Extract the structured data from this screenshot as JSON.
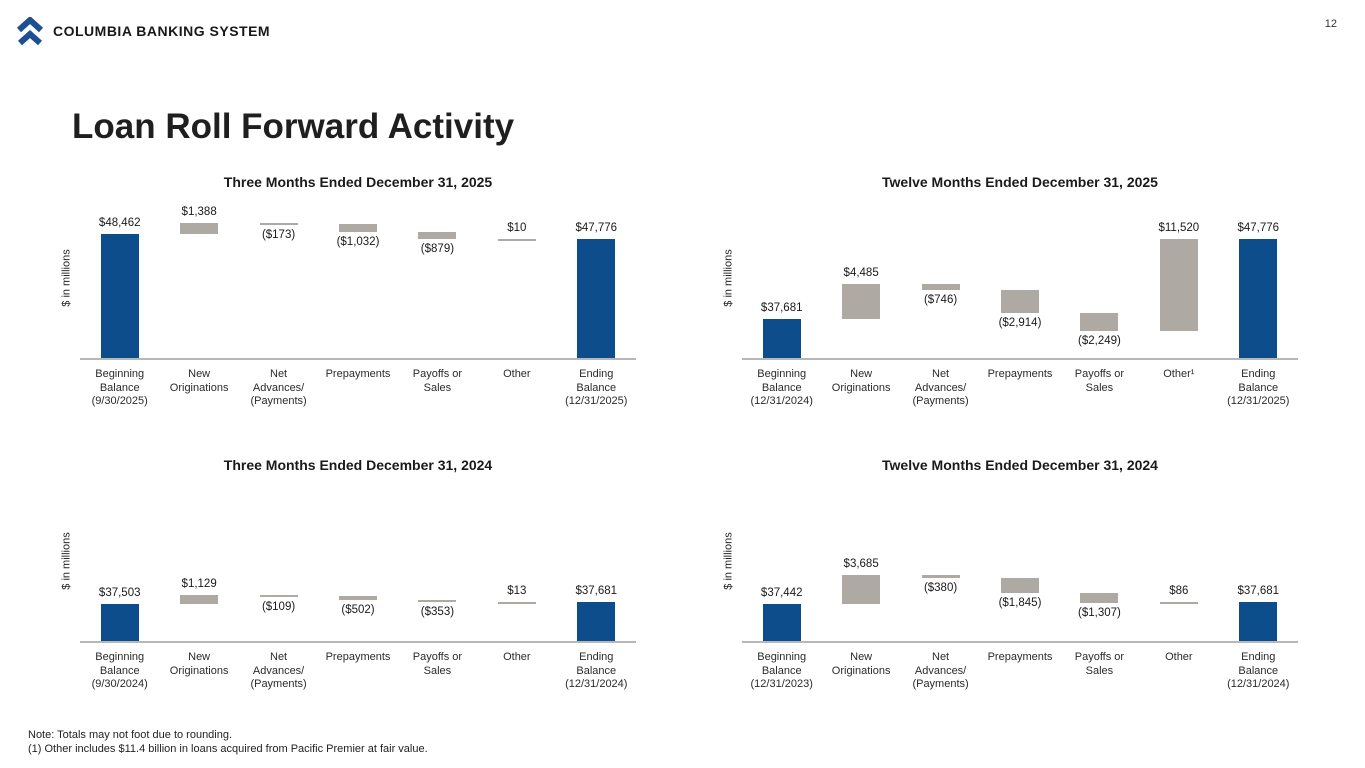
{
  "header": {
    "brand": "COLUMBIA BANKING SYSTEM",
    "page_number": "12"
  },
  "title": "Loan Roll Forward Activity",
  "footnotes": [
    "Note: Totals may not foot due to rounding.",
    "(1)  Other includes $11.4 billion in loans acquired from Pacific Premier at fair value."
  ],
  "colors": {
    "bar_blue": "#0d4d8c",
    "bar_gray": "#aea9a3",
    "axis_gray": "#b7b7b7",
    "logo_blue": "#1d4f91"
  },
  "chart_data": [
    {
      "type": "waterfall",
      "title": "Three Months Ended December 31, 2025",
      "ylabel": "$ in millions",
      "ylim": [
        32800,
        53000
      ],
      "grid": false,
      "steps": [
        {
          "label": "Beginning\nBalance\n(9/30/2025)",
          "kind": "total",
          "value": 48462,
          "display": "$48,462"
        },
        {
          "label": "New\nOriginations",
          "kind": "delta",
          "value": 1388,
          "display": "$1,388"
        },
        {
          "label": "Net\nAdvances/\n(Payments)",
          "kind": "delta",
          "value": -173,
          "display": "($173)"
        },
        {
          "label": "Prepayments",
          "kind": "delta",
          "value": -1032,
          "display": "($1,032)"
        },
        {
          "label": "Payoffs or\nSales",
          "kind": "delta",
          "value": -879,
          "display": "($879)"
        },
        {
          "label": "Other",
          "kind": "delta",
          "value": 10,
          "display": "$10"
        },
        {
          "label": "Ending\nBalance\n(12/31/2025)",
          "kind": "total",
          "value": 47776,
          "display": "$47,776"
        }
      ]
    },
    {
      "type": "waterfall",
      "title": "Twelve Months Ended December 31, 2025",
      "ylabel": "$ in millions",
      "ylim": [
        32800,
        53000
      ],
      "grid": false,
      "steps": [
        {
          "label": "Beginning\nBalance\n(12/31/2024)",
          "kind": "total",
          "value": 37681,
          "display": "$37,681"
        },
        {
          "label": "New\nOriginations",
          "kind": "delta",
          "value": 4485,
          "display": "$4,485"
        },
        {
          "label": "Net\nAdvances/\n(Payments)",
          "kind": "delta",
          "value": -746,
          "display": "($746)"
        },
        {
          "label": "Prepayments",
          "kind": "delta",
          "value": -2914,
          "display": "($2,914)"
        },
        {
          "label": "Payoffs or\nSales",
          "kind": "delta",
          "value": -2249,
          "display": "($2,249)"
        },
        {
          "label": "Other¹",
          "kind": "delta",
          "value": 11520,
          "display": "$11,520"
        },
        {
          "label": "Ending\nBalance\n(12/31/2025)",
          "kind": "total",
          "value": 47776,
          "display": "$47,776"
        }
      ]
    },
    {
      "type": "waterfall",
      "title": "Three Months Ended December 31, 2024",
      "ylabel": "$ in millions",
      "ylim": [
        32800,
        53000
      ],
      "grid": false,
      "steps": [
        {
          "label": "Beginning\nBalance\n(9/30/2024)",
          "kind": "total",
          "value": 37503,
          "display": "$37,503"
        },
        {
          "label": "New\nOriginations",
          "kind": "delta",
          "value": 1129,
          "display": "$1,129"
        },
        {
          "label": "Net\nAdvances/\n(Payments)",
          "kind": "delta",
          "value": -109,
          "display": "($109)"
        },
        {
          "label": "Prepayments",
          "kind": "delta",
          "value": -502,
          "display": "($502)"
        },
        {
          "label": "Payoffs or\nSales",
          "kind": "delta",
          "value": -353,
          "display": "($353)"
        },
        {
          "label": "Other",
          "kind": "delta",
          "value": 13,
          "display": "$13"
        },
        {
          "label": "Ending\nBalance\n(12/31/2024)",
          "kind": "total",
          "value": 37681,
          "display": "$37,681"
        }
      ]
    },
    {
      "type": "waterfall",
      "title": "Twelve Months Ended December 31, 2024",
      "ylabel": "$ in millions",
      "ylim": [
        32800,
        53000
      ],
      "grid": false,
      "steps": [
        {
          "label": "Beginning\nBalance\n(12/31/2023)",
          "kind": "total",
          "value": 37442,
          "display": "$37,442"
        },
        {
          "label": "New\nOriginations",
          "kind": "delta",
          "value": 3685,
          "display": "$3,685"
        },
        {
          "label": "Net\nAdvances/\n(Payments)",
          "kind": "delta",
          "value": -380,
          "display": "($380)"
        },
        {
          "label": "Prepayments",
          "kind": "delta",
          "value": -1845,
          "display": "($1,845)"
        },
        {
          "label": "Payoffs or\nSales",
          "kind": "delta",
          "value": -1307,
          "display": "($1,307)"
        },
        {
          "label": "Other",
          "kind": "delta",
          "value": 86,
          "display": "$86"
        },
        {
          "label": "Ending\nBalance\n(12/31/2024)",
          "kind": "total",
          "value": 37681,
          "display": "$37,681"
        }
      ]
    }
  ]
}
